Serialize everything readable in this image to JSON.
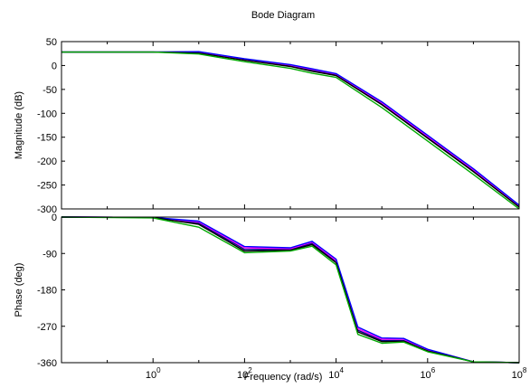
{
  "chart_data": {
    "type": "line",
    "title": "Bode Diagram",
    "xlabel": "Frequency  (rad/s)",
    "x_scale": "log",
    "xlim": [
      0.01,
      100000000
    ],
    "x_ticks": [
      {
        "value": 1,
        "base": "10",
        "exp": "0"
      },
      {
        "value": 100,
        "base": "10",
        "exp": "2"
      },
      {
        "value": 10000,
        "base": "10",
        "exp": "4"
      },
      {
        "value": 1000000,
        "base": "10",
        "exp": "6"
      },
      {
        "value": 100000000,
        "base": "10",
        "exp": "8"
      }
    ],
    "grid": false,
    "legend": "none",
    "colors": [
      "#00008b",
      "#0000ff",
      "#00aa00",
      "#ff00ff",
      "#8b0000",
      "#000000"
    ],
    "panels": [
      {
        "name": "magnitude",
        "ylabel": "Magnitude (dB)",
        "ylim": [
          -300,
          50
        ],
        "y_ticks": [
          50,
          0,
          -50,
          -100,
          -150,
          -200,
          -250,
          -300
        ],
        "y_tick_labels": [
          "50",
          "0",
          "-50",
          "-100",
          "-150",
          "-200",
          "-250",
          "-300"
        ],
        "series": [
          {
            "color": "#00008b",
            "x": [
              0.01,
              1,
              10,
              100,
              1000,
              3000,
              10000,
              100000,
              1000000,
              10000000,
              100000000
            ],
            "y": [
              28,
              28,
              28,
              12,
              0,
              -10,
              -20,
              -80,
              -150,
              -220,
              -295
            ]
          },
          {
            "color": "#ff00ff",
            "x": [
              0.01,
              1,
              10,
              100,
              1000,
              3000,
              10000,
              100000,
              1000000,
              10000000,
              100000000
            ],
            "y": [
              28,
              28,
              27,
              13,
              1,
              -8,
              -18,
              -78,
              -148,
              -218,
              -293
            ]
          },
          {
            "color": "#0000ff",
            "x": [
              0.01,
              1,
              10,
              100,
              1000,
              3000,
              10000,
              100000,
              1000000,
              10000000,
              100000000
            ],
            "y": [
              28,
              28,
              29,
              14,
              2,
              -7,
              -17,
              -76,
              -146,
              -216,
              -292
            ]
          },
          {
            "color": "#000000",
            "x": [
              0.01,
              1,
              10,
              100,
              1000,
              3000,
              10000,
              100000,
              1000000,
              10000000,
              100000000
            ],
            "y": [
              28,
              28,
              26,
              11,
              -2,
              -12,
              -21,
              -82,
              -152,
              -222,
              -296
            ]
          },
          {
            "color": "#00aa00",
            "x": [
              0.01,
              1,
              10,
              100,
              1000,
              3000,
              10000,
              100000,
              1000000,
              10000000,
              100000000
            ],
            "y": [
              28,
              28,
              24,
              8,
              -6,
              -16,
              -25,
              -88,
              -158,
              -228,
              -300
            ]
          }
        ]
      },
      {
        "name": "phase",
        "ylabel": "Phase (deg)",
        "ylim": [
          -360,
          0
        ],
        "y_ticks": [
          0,
          -90,
          -180,
          -270,
          -360
        ],
        "y_tick_labels": [
          "0",
          "-90",
          "-180",
          "-270",
          "-360"
        ],
        "series": [
          {
            "color": "#00008b",
            "x": [
              0.01,
              1,
              10,
              100,
              1000,
              3000,
              10000,
              30000,
              100000,
              300000,
              1000000,
              10000000,
              100000000
            ],
            "y": [
              0,
              -1,
              -15,
              -80,
              -80,
              -65,
              -110,
              -280,
              -305,
              -305,
              -330,
              -358,
              -360
            ]
          },
          {
            "color": "#ff00ff",
            "x": [
              0.01,
              1,
              10,
              100,
              1000,
              3000,
              10000,
              30000,
              100000,
              300000,
              1000000,
              10000000,
              100000000
            ],
            "y": [
              0,
              -1,
              -12,
              -76,
              -78,
              -62,
              -107,
              -276,
              -302,
              -302,
              -328,
              -358,
              -360
            ]
          },
          {
            "color": "#0000ff",
            "x": [
              0.01,
              1,
              10,
              100,
              1000,
              3000,
              10000,
              30000,
              100000,
              300000,
              1000000,
              10000000,
              100000000
            ],
            "y": [
              0,
              -1,
              -10,
              -73,
              -76,
              -60,
              -104,
              -272,
              -299,
              -300,
              -327,
              -358,
              -360
            ]
          },
          {
            "color": "#000000",
            "x": [
              0.01,
              1,
              10,
              100,
              1000,
              3000,
              10000,
              30000,
              100000,
              300000,
              1000000,
              10000000,
              100000000
            ],
            "y": [
              0,
              -1,
              -18,
              -84,
              -82,
              -68,
              -113,
              -284,
              -308,
              -307,
              -331,
              -358,
              -360
            ]
          },
          {
            "color": "#00aa00",
            "x": [
              0.01,
              1,
              10,
              100,
              1000,
              3000,
              10000,
              30000,
              100000,
              300000,
              1000000,
              10000000,
              100000000
            ],
            "y": [
              0,
              -2,
              -25,
              -88,
              -84,
              -72,
              -118,
              -290,
              -312,
              -309,
              -333,
              -358,
              -360
            ]
          }
        ]
      }
    ]
  }
}
